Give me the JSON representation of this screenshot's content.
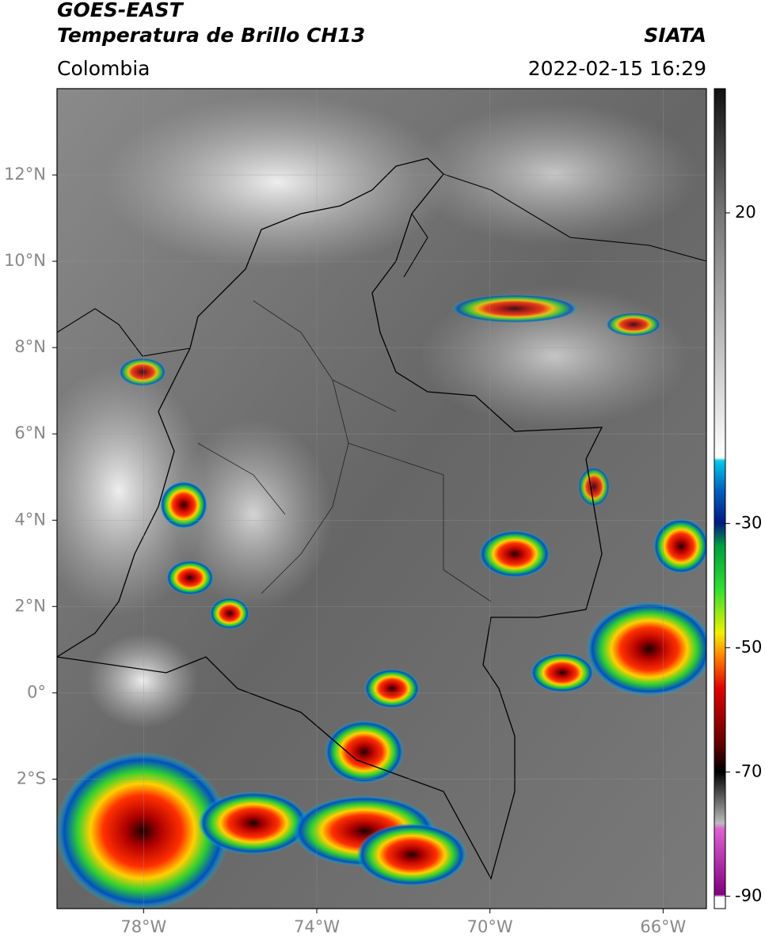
{
  "header": {
    "title_line1": "GOES-EAST",
    "title_line2": "Temperatura de Brillo CH13",
    "source": "SIATA",
    "region": "Colombia",
    "timestamp": "2022-02-15 16:29"
  },
  "map": {
    "xlim": [
      -80,
      -65
    ],
    "ylim": [
      -5,
      14
    ],
    "xticks": [
      {
        "value": -78,
        "label": "78°W"
      },
      {
        "value": -74,
        "label": "74°W"
      },
      {
        "value": -70,
        "label": "70°W"
      },
      {
        "value": -66,
        "label": "66°W"
      }
    ],
    "yticks": [
      {
        "value": 12,
        "label": "12°N"
      },
      {
        "value": 10,
        "label": "10°N"
      },
      {
        "value": 8,
        "label": "8°N"
      },
      {
        "value": 6,
        "label": "6°N"
      },
      {
        "value": 4,
        "label": "4°N"
      },
      {
        "value": 2,
        "label": "2°N"
      },
      {
        "value": 0,
        "label": "0°"
      },
      {
        "value": -2,
        "label": "2°S"
      }
    ]
  },
  "colorbar": {
    "lim": [
      -92,
      40
    ],
    "ticks": [
      20,
      -30,
      -50,
      -70,
      -90
    ]
  }
}
